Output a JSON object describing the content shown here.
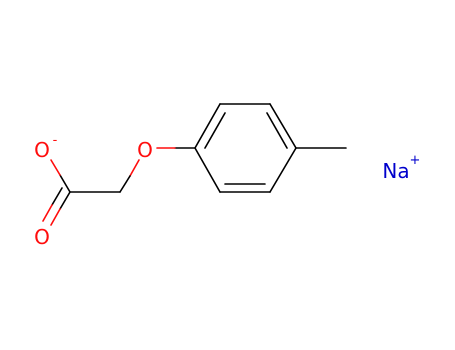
{
  "atoms": [
    {
      "label": "O",
      "charge": "-"
    },
    {
      "label": "O"
    },
    {
      "label": "O"
    },
    {
      "label": "Na",
      "charge": "+"
    }
  ]
}
